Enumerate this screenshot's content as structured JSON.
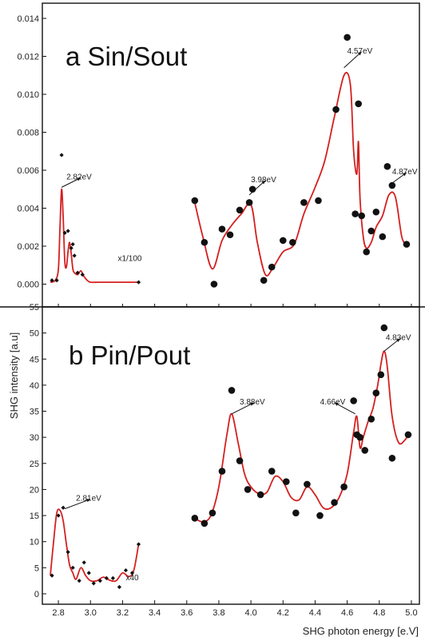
{
  "figure": {
    "ylabel": "SHG intensity [a.u]",
    "xlabel": "SHG photon energy [e.V]"
  },
  "chart_data": [
    {
      "type": "scatter",
      "panel_label": "a Sin/Sout",
      "xlabel": "SHG photon energy [e.V]",
      "ylabel": "SHG intensity [a.u]",
      "xlim": [
        2.7,
        5.05
      ],
      "ylim": [
        -0.0012,
        0.0148
      ],
      "yticks": [
        0.0,
        0.002,
        0.004,
        0.006,
        0.008,
        0.01,
        0.012,
        0.014
      ],
      "ytick_labels": [
        "0.000",
        "0.002",
        "0.004",
        "0.006",
        "0.008",
        "0.010",
        "0.012",
        "0.014"
      ],
      "series": [
        {
          "points_x": [
            2.76,
            2.79,
            2.82,
            2.84,
            2.86,
            2.88,
            2.89,
            2.9,
            2.92,
            2.95,
            3.3
          ],
          "points_y": [
            0.0002,
            0.0002,
            0.0068,
            0.0027,
            0.0028,
            0.0019,
            0.0021,
            0.0015,
            0.0006,
            0.0005,
            0.0001
          ],
          "curve_x": [
            2.75,
            2.78,
            2.8,
            2.81,
            2.82,
            2.83,
            2.84,
            2.85,
            2.86,
            2.87,
            2.88,
            2.89,
            2.9,
            2.92,
            2.94,
            2.96,
            2.98,
            3.0,
            3.05,
            3.1,
            3.2,
            3.3
          ],
          "curve_y": [
            0.0001,
            0.0002,
            0.0008,
            0.003,
            0.005,
            0.0035,
            0.0012,
            0.0009,
            0.0017,
            0.0022,
            0.0016,
            0.0008,
            0.0006,
            0.0005,
            0.0007,
            0.0004,
            0.0002,
            0.0001,
            0.0001,
            0.0001,
            0.0001,
            0.0001
          ],
          "point_style": "small-diamond"
        },
        {
          "points_x": [
            3.65,
            3.71,
            3.77,
            3.82,
            3.87,
            3.93,
            3.99,
            4.01,
            4.08,
            4.13,
            4.2,
            4.26,
            4.33,
            4.42,
            4.53,
            4.6,
            4.65,
            4.67,
            4.69,
            4.72,
            4.75,
            4.78,
            4.82,
            4.85,
            4.88,
            4.97
          ],
          "points_y": [
            0.0044,
            0.0022,
            0.0,
            0.0029,
            0.0026,
            0.0039,
            0.0043,
            0.005,
            0.0002,
            0.0009,
            0.0023,
            0.0022,
            0.0043,
            0.0044,
            0.0092,
            0.013,
            0.0037,
            0.0095,
            0.0036,
            0.0017,
            0.0028,
            0.0038,
            0.0025,
            0.0062,
            0.0052,
            0.0021
          ],
          "curve_x": [
            3.65,
            3.7,
            3.76,
            3.82,
            3.88,
            3.94,
            4.0,
            4.04,
            4.09,
            4.14,
            4.2,
            4.27,
            4.33,
            4.4,
            4.46,
            4.52,
            4.58,
            4.62,
            4.64,
            4.66,
            4.67,
            4.68,
            4.7,
            4.72,
            4.75,
            4.78,
            4.82,
            4.86,
            4.9,
            4.94,
            4.97
          ],
          "curve_y": [
            0.0043,
            0.0025,
            0.0008,
            0.0023,
            0.0031,
            0.0037,
            0.0042,
            0.0022,
            0.0005,
            0.0009,
            0.0017,
            0.0021,
            0.0037,
            0.0051,
            0.0065,
            0.0088,
            0.011,
            0.0105,
            0.007,
            0.0058,
            0.0075,
            0.0045,
            0.0025,
            0.0019,
            0.0022,
            0.003,
            0.0036,
            0.0047,
            0.0046,
            0.0025,
            0.0021
          ],
          "point_style": "filled-circle"
        }
      ],
      "annotations": [
        {
          "text": "2.82eV",
          "x": 2.82,
          "y": 0.0051
        },
        {
          "text": "3.98eV",
          "x": 3.99,
          "y": 0.0047
        },
        {
          "text": "4.57eV",
          "x": 4.58,
          "y": 0.0114
        },
        {
          "text": "4.87eV",
          "x": 4.86,
          "y": 0.0052
        },
        {
          "text": "x1/100",
          "x": 3.26,
          "y": 0.0008
        }
      ]
    },
    {
      "type": "scatter",
      "panel_label": "b Pin/Pout",
      "xlabel": "SHG photon energy [e.V]",
      "ylabel": "SHG intensity [a.u]",
      "xlim": [
        2.7,
        5.05
      ],
      "ylim": [
        -2,
        55
      ],
      "yticks": [
        0,
        5,
        10,
        15,
        20,
        25,
        30,
        35,
        40,
        45,
        50,
        55
      ],
      "ytick_labels": [
        "0",
        "5",
        "10",
        "15",
        "20",
        "25",
        "30",
        "35",
        "40",
        "45",
        "50",
        "55"
      ],
      "xticks": [
        2.8,
        3.0,
        3.2,
        3.4,
        3.6,
        3.8,
        4.0,
        4.2,
        4.4,
        4.6,
        4.8,
        5.0
      ],
      "xtick_labels": [
        "2.8",
        "3.0",
        "3.2",
        "3.4",
        "3.6",
        "3.8",
        "4.0",
        "4.2",
        "4.4",
        "4.6",
        "4.8",
        "5.0"
      ],
      "series": [
        {
          "points_x": [
            2.76,
            2.8,
            2.83,
            2.86,
            2.89,
            2.93,
            2.96,
            2.99,
            3.02,
            3.06,
            3.1,
            3.14,
            3.18,
            3.22,
            3.26,
            3.3
          ],
          "points_y": [
            3.5,
            15,
            16.5,
            8,
            5,
            2.5,
            6,
            4,
            2,
            2.5,
            3,
            3,
            1.3,
            4.5,
            4,
            9.5
          ],
          "curve_x": [
            2.75,
            2.77,
            2.79,
            2.81,
            2.83,
            2.85,
            2.87,
            2.89,
            2.91,
            2.94,
            2.97,
            3.0,
            3.04,
            3.08,
            3.12,
            3.16,
            3.2,
            3.24,
            3.27,
            3.3
          ],
          "curve_y": [
            3.5,
            10,
            15.5,
            16,
            14,
            9.5,
            5.5,
            4.0,
            2.8,
            5.0,
            3.5,
            2.5,
            2.5,
            3.2,
            2.6,
            2.5,
            4.0,
            3.3,
            4.5,
            9.5
          ],
          "point_style": "small-diamond"
        },
        {
          "points_x": [
            3.65,
            3.71,
            3.76,
            3.82,
            3.88,
            3.93,
            3.98,
            4.06,
            4.13,
            4.22,
            4.28,
            4.35,
            4.43,
            4.52,
            4.58,
            4.64,
            4.66,
            4.68,
            4.71,
            4.75,
            4.78,
            4.81,
            4.83,
            4.88,
            4.98
          ],
          "points_y": [
            14.5,
            13.5,
            15.5,
            23.5,
            39,
            25.5,
            20,
            19,
            23.5,
            21.5,
            15.5,
            21,
            15,
            17.5,
            20.5,
            37,
            30.5,
            30,
            27.5,
            33.5,
            38.5,
            42,
            51,
            26,
            30.5
          ],
          "curve_x": [
            3.65,
            3.7,
            3.75,
            3.8,
            3.85,
            3.88,
            3.92,
            3.96,
            4.0,
            4.05,
            4.1,
            4.15,
            4.2,
            4.25,
            4.3,
            4.35,
            4.4,
            4.45,
            4.5,
            4.55,
            4.6,
            4.64,
            4.66,
            4.68,
            4.7,
            4.73,
            4.76,
            4.79,
            4.81,
            4.83,
            4.85,
            4.88,
            4.92,
            4.96,
            4.98
          ],
          "curve_y": [
            14.5,
            13.8,
            15,
            20.5,
            30.5,
            34.5,
            29,
            23,
            20.5,
            19.2,
            19.5,
            22.5,
            21.5,
            18.5,
            18,
            20.5,
            19,
            16.5,
            16.5,
            18.5,
            23,
            31,
            34,
            28,
            30,
            33,
            35.5,
            40,
            44,
            46.5,
            43.5,
            34,
            29,
            29.5,
            30.5
          ],
          "point_style": "filled-circle"
        }
      ],
      "annotations": [
        {
          "text": "2.81eV",
          "x": 2.84,
          "y": 16.3
        },
        {
          "text": "3.88eV",
          "x": 3.88,
          "y": 34.5
        },
        {
          "text": "4.66eV",
          "x": 4.65,
          "y": 34.5
        },
        {
          "text": "4.83eV",
          "x": 4.83,
          "y": 46.5
        },
        {
          "text": "x40",
          "x": 3.28,
          "y": 3.5
        }
      ]
    }
  ]
}
